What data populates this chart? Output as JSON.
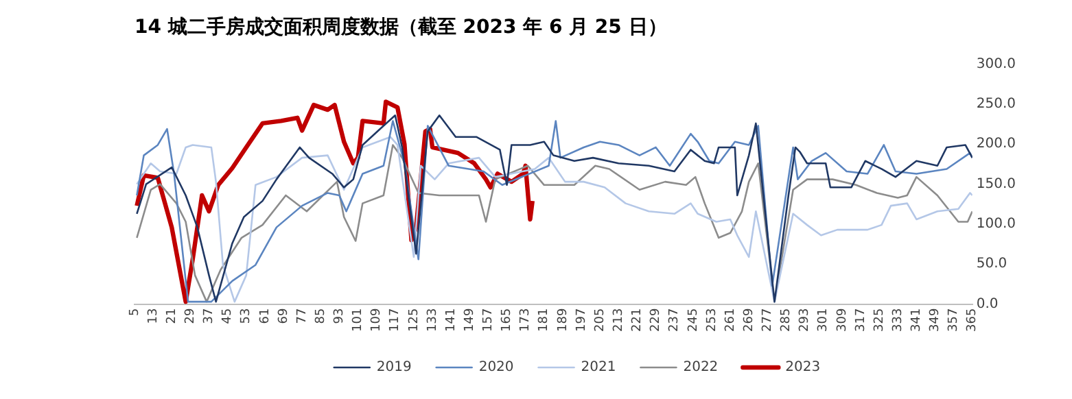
{
  "chart_data": {
    "type": "line",
    "title": "14 城二手房成交面积周度数据（截至 2023 年 6 月 25 日）",
    "xlim": [
      5,
      365
    ],
    "xticks": [
      5,
      13,
      21,
      29,
      37,
      45,
      53,
      61,
      69,
      77,
      85,
      93,
      101,
      109,
      117,
      125,
      133,
      141,
      149,
      157,
      165,
      173,
      181,
      189,
      197,
      205,
      213,
      221,
      229,
      237,
      245,
      253,
      261,
      269,
      277,
      285,
      293,
      301,
      309,
      317,
      325,
      333,
      341,
      349,
      357,
      365
    ],
    "ylim": [
      0,
      300
    ],
    "yticks": [
      {
        "value": 0,
        "label": "0.0"
      },
      {
        "value": 50,
        "label": "50.0"
      },
      {
        "value": 100,
        "label": "100.0"
      },
      {
        "value": 150,
        "label": "150.0"
      },
      {
        "value": 200,
        "label": "200.0"
      },
      {
        "value": 250,
        "label": "250.0"
      },
      {
        "value": 300,
        "label": "300.0"
      }
    ],
    "grid": false,
    "legend": "bottom",
    "marker": "none",
    "line_style": "solid",
    "series": [
      {
        "name": "2019",
        "color": "#203864",
        "x": [
          6,
          10,
          21,
          27,
          32,
          37,
          40,
          47,
          52,
          60,
          66,
          76,
          80,
          90,
          95,
          99,
          103,
          112,
          117,
          120,
          126,
          131,
          136,
          143,
          152,
          162,
          165,
          167,
          175,
          181,
          185,
          194,
          202,
          213,
          226,
          237,
          244,
          250,
          254,
          256,
          263,
          264,
          269,
          272,
          280,
          286,
          289,
          291,
          294,
          302,
          304,
          313,
          319,
          326,
          332,
          341,
          350,
          354,
          362,
          365
        ],
        "values": [
          113,
          150,
          171,
          136,
          96,
          36,
          3,
          76,
          109,
          129,
          156,
          196,
          183,
          163,
          146,
          156,
          199,
          223,
          236,
          196,
          63,
          216,
          236,
          209,
          209,
          193,
          149,
          199,
          199,
          203,
          186,
          179,
          183,
          176,
          173,
          166,
          193,
          179,
          176,
          196,
          196,
          136,
          186,
          226,
          3,
          136,
          196,
          190,
          176,
          176,
          146,
          146,
          179,
          169,
          159,
          179,
          173,
          196,
          199,
          183
        ]
      },
      {
        "name": "2020",
        "color": "#5b85c0",
        "x": [
          6,
          9,
          15,
          19,
          22,
          28,
          38,
          47,
          57,
          66,
          77,
          88,
          93,
          96,
          103,
          112,
          116,
          121,
          127,
          131,
          140,
          155,
          163,
          183,
          186,
          188,
          198,
          205,
          213,
          222,
          229,
          235,
          244,
          247,
          252,
          256,
          263,
          269,
          273,
          279,
          288,
          290,
          296,
          302,
          311,
          320,
          327,
          332,
          341,
          354,
          364,
          365
        ],
        "values": [
          136,
          186,
          199,
          219,
          163,
          3,
          3,
          29,
          49,
          96,
          123,
          139,
          136,
          116,
          163,
          173,
          229,
          176,
          56,
          223,
          173,
          166,
          149,
          173,
          229,
          183,
          196,
          203,
          199,
          186,
          196,
          173,
          213,
          203,
          179,
          176,
          203,
          199,
          223,
          23,
          196,
          156,
          179,
          189,
          166,
          163,
          199,
          166,
          163,
          169,
          189,
          183
        ]
      },
      {
        "name": "2021",
        "color": "#b4c7e7",
        "x": [
          6,
          12,
          16,
          23,
          27,
          30,
          38,
          40,
          43,
          48,
          53,
          57,
          66,
          77,
          88,
          95,
          103,
          115,
          118,
          125,
          128,
          134,
          140,
          153,
          160,
          177,
          183,
          190,
          198,
          207,
          216,
          226,
          237,
          244,
          247,
          255,
          261,
          264,
          269,
          272,
          280,
          288,
          294,
          300,
          307,
          320,
          326,
          330,
          337,
          341,
          350,
          359,
          364,
          365
        ],
        "values": [
          150,
          176,
          166,
          163,
          196,
          199,
          196,
          153,
          49,
          3,
          36,
          149,
          159,
          183,
          186,
          143,
          196,
          209,
          199,
          59,
          173,
          156,
          176,
          183,
          159,
          169,
          183,
          153,
          153,
          146,
          126,
          116,
          113,
          126,
          113,
          103,
          106,
          86,
          59,
          116,
          3,
          113,
          99,
          86,
          93,
          93,
          99,
          123,
          126,
          106,
          116,
          119,
          139,
          136
        ]
      },
      {
        "name": "2022",
        "color": "#8c8c8c",
        "x": [
          6,
          12,
          16,
          23,
          27,
          31,
          36,
          42,
          51,
          60,
          70,
          79,
          92,
          95,
          100,
          103,
          112,
          116,
          120,
          127,
          136,
          153,
          156,
          160,
          174,
          181,
          194,
          203,
          209,
          222,
          233,
          242,
          246,
          250,
          256,
          261,
          266,
          269,
          273,
          280,
          288,
          294,
          305,
          315,
          324,
          333,
          337,
          341,
          350,
          359,
          363,
          365
        ],
        "values": [
          83,
          143,
          150,
          126,
          103,
          36,
          3,
          43,
          83,
          99,
          136,
          116,
          153,
          109,
          79,
          126,
          136,
          199,
          183,
          139,
          136,
          136,
          103,
          156,
          173,
          149,
          149,
          173,
          169,
          143,
          153,
          149,
          159,
          126,
          83,
          89,
          116,
          153,
          176,
          3,
          143,
          156,
          156,
          149,
          139,
          133,
          136,
          159,
          136,
          103,
          103,
          116
        ]
      },
      {
        "name": "2023",
        "color": "#c00000",
        "x": [
          6,
          9,
          15,
          21,
          27,
          30,
          34,
          37,
          41,
          47,
          53,
          60,
          68,
          75,
          77,
          82,
          88,
          91,
          95,
          99,
          101,
          103,
          112,
          113,
          118,
          121,
          124,
          126,
          130,
          132,
          133,
          144,
          151,
          156,
          158,
          161,
          167,
          172,
          173,
          175,
          176
        ],
        "values": [
          123,
          161,
          158,
          96,
          3,
          56,
          136,
          116,
          149,
          170,
          196,
          226,
          229,
          233,
          217,
          249,
          243,
          249,
          203,
          176,
          183,
          229,
          226,
          253,
          246,
          200,
          80,
          96,
          216,
          219,
          196,
          189,
          176,
          156,
          146,
          163,
          153,
          163,
          173,
          106,
          129
        ]
      }
    ]
  }
}
